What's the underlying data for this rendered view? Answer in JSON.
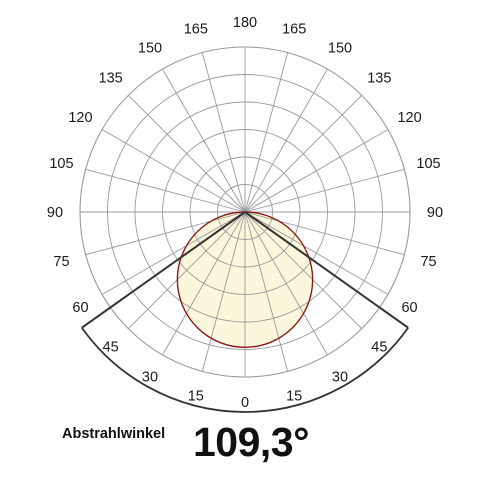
{
  "chart_data": {
    "type": "polar",
    "angle_labels": [
      "180",
      "165",
      "150",
      "135",
      "120",
      "105",
      "90",
      "75",
      "60",
      "45",
      "30",
      "15",
      "0"
    ],
    "angle_step_deg": 15,
    "radial_grid_rings": 6,
    "grid": true,
    "distribution": {
      "shape": "circle-through-origin",
      "diameter_fraction_of_max": 0.82,
      "fill": "#fbf7dc",
      "stroke": "#8b1a1a"
    },
    "beam_angle_deg": 109.3,
    "beam_lines_color": "#333333",
    "beam_arc_color": "#333333",
    "grid_color": "#9a9a9a"
  },
  "beam_angle": {
    "label": "Abstrahlwinkel",
    "value": "109,3°"
  }
}
